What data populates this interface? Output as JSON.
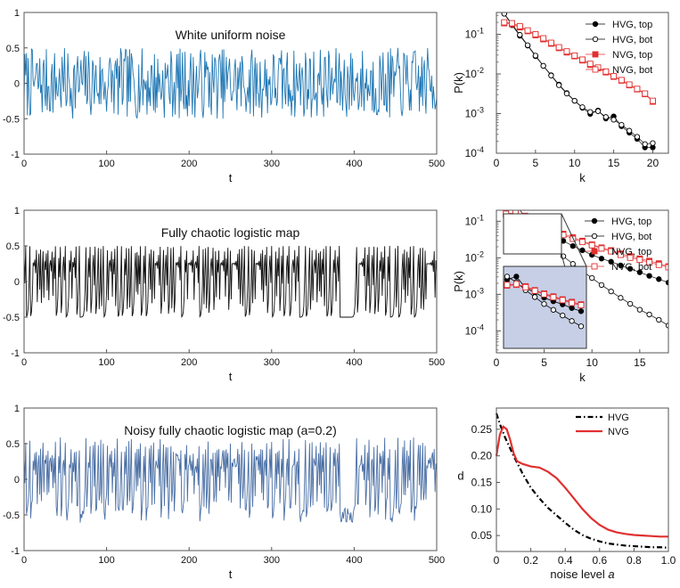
{
  "chart_data": [
    {
      "id": "ts1",
      "type": "line",
      "title": "White uniform noise",
      "xlabel": "t",
      "ylabel": "",
      "xlim": [
        0,
        500
      ],
      "ylim": [
        -1,
        1
      ],
      "xticks": [
        "0",
        "100",
        "200",
        "300",
        "400",
        "500"
      ],
      "yticks": [
        "-1",
        "-0.5",
        "0",
        "0.5",
        "1"
      ],
      "series": [
        {
          "name": "white uniform noise",
          "color": "#1f77b4",
          "generator": "uniform",
          "n": 500,
          "amplitude": 0.5
        }
      ]
    },
    {
      "id": "ts2",
      "type": "line",
      "title": "Fully chaotic logistic map",
      "xlabel": "t",
      "ylabel": "",
      "xlim": [
        0,
        500
      ],
      "ylim": [
        -1,
        1
      ],
      "xticks": [
        "0",
        "100",
        "200",
        "300",
        "400",
        "500"
      ],
      "yticks": [
        "-1",
        "-0.5",
        "0",
        "0.5",
        "1"
      ],
      "series": [
        {
          "name": "logistic map",
          "color": "#111111",
          "generator": "logistic",
          "n": 500,
          "noise": 0
        }
      ]
    },
    {
      "id": "ts3",
      "type": "line",
      "title": "Noisy fully chaotic logistic map (a=0.2)",
      "xlabel": "t",
      "ylabel": "",
      "xlim": [
        0,
        500
      ],
      "ylim": [
        -1,
        1
      ],
      "xticks": [
        "0",
        "100",
        "200",
        "300",
        "400",
        "500"
      ],
      "yticks": [
        "-1",
        "-0.5",
        "0",
        "0.5",
        "1"
      ],
      "series": [
        {
          "name": "noisy logistic map",
          "color": "#4a6fa5",
          "generator": "logistic",
          "n": 500,
          "noise": 0.2
        }
      ]
    },
    {
      "id": "deg1",
      "type": "scatter",
      "xlabel": "k",
      "ylabel": "P(k)",
      "xlim": [
        0,
        22
      ],
      "ylim_log": [
        -4,
        -0.45
      ],
      "xticks": [
        "0",
        "5",
        "10",
        "15",
        "20"
      ],
      "ytick_exponents": [
        -4,
        -3,
        -2,
        -1
      ],
      "legend": "top-right",
      "series": [
        {
          "name": "HVG, top",
          "color": "#000000",
          "marker": "filled-circle",
          "x": [
            1,
            2,
            3,
            4,
            5,
            6,
            7,
            8,
            9,
            10,
            11,
            12,
            13,
            14,
            15,
            16,
            17,
            18,
            19,
            20
          ],
          "y": [
            0.33,
            0.17,
            0.092,
            0.052,
            0.028,
            0.016,
            0.0093,
            0.0054,
            0.0033,
            0.0021,
            0.0014,
            0.00098,
            0.0012,
            0.00075,
            0.00085,
            0.00048,
            0.00033,
            0.00023,
            0.00014,
            0.00014
          ]
        },
        {
          "name": "HVG, bot",
          "color": "#000000",
          "marker": "open-circle",
          "x": [
            1,
            2,
            3,
            4,
            5,
            6,
            7,
            8,
            9,
            10,
            11,
            12,
            13,
            14,
            15,
            16,
            17,
            18,
            19,
            20
          ],
          "y": [
            0.33,
            0.18,
            0.097,
            0.053,
            0.029,
            0.016,
            0.0091,
            0.0052,
            0.0032,
            0.0021,
            0.00145,
            0.0011,
            0.00115,
            0.00082,
            0.0007,
            0.00052,
            0.00037,
            0.00026,
            0.00017,
            0.00018
          ]
        },
        {
          "name": "NVG, top",
          "color": "#e03030",
          "marker": "filled-square",
          "x": [
            1,
            2,
            3,
            4,
            5,
            6,
            7,
            8,
            9,
            10,
            11,
            12,
            13,
            14,
            15,
            16,
            17,
            18,
            19,
            20
          ],
          "y": [
            0.19,
            0.18,
            0.15,
            0.12,
            0.095,
            0.075,
            0.058,
            0.045,
            0.035,
            0.028,
            0.022,
            0.017,
            0.014,
            0.011,
            0.0085,
            0.0068,
            0.0052,
            0.0041,
            0.0031,
            0.002
          ]
        },
        {
          "name": "NVG, bot",
          "color": "#e03030",
          "marker": "open-square",
          "x": [
            1,
            2,
            3,
            4,
            5,
            6,
            7,
            8,
            9,
            10,
            11,
            12,
            13,
            14,
            15,
            16,
            17,
            18,
            19,
            20
          ],
          "y": [
            0.2,
            0.19,
            0.16,
            0.125,
            0.1,
            0.079,
            0.061,
            0.047,
            0.037,
            0.029,
            0.023,
            0.018,
            0.0145,
            0.0115,
            0.0088,
            0.007,
            0.0054,
            0.0042,
            0.0032,
            0.0021
          ]
        }
      ]
    },
    {
      "id": "deg2",
      "type": "scatter",
      "xlabel": "k",
      "ylabel": "P(k)",
      "xlim": [
        0,
        18
      ],
      "ylim_log": [
        -4.6,
        -0.7
      ],
      "xticks": [
        "0",
        "5",
        "10",
        "15"
      ],
      "ytick_exponents": [
        -4,
        -3,
        -2,
        -1
      ],
      "legend": "top-right",
      "has_inset": true,
      "series": [
        {
          "name": "HVG, top",
          "color": "#000000",
          "marker": "filled-circle",
          "x": [
            1,
            2,
            3,
            4,
            5,
            6,
            7,
            8,
            9,
            10,
            11,
            12,
            13,
            14,
            15,
            16,
            17,
            18
          ],
          "y": [
            0.25,
            0.33,
            0.12,
            0.082,
            0.052,
            0.038,
            0.029,
            0.021,
            0.016,
            0.012,
            0.0095,
            0.0078,
            0.0062,
            0.005,
            0.004,
            0.0032,
            0.0026,
            0.0021
          ]
        },
        {
          "name": "HVG, bot",
          "color": "#000000",
          "marker": "open-circle",
          "x": [
            1,
            2,
            3,
            4,
            5,
            6,
            7,
            8,
            9,
            10,
            11,
            12,
            13,
            14,
            15,
            16,
            17,
            18
          ],
          "y": [
            0.33,
            0.2,
            0.1,
            0.055,
            0.03,
            0.018,
            0.011,
            0.0068,
            0.0043,
            0.0028,
            0.0018,
            0.0012,
            0.0008,
            0.00055,
            0.00038,
            0.00028,
            0.0002,
            0.00014
          ]
        },
        {
          "name": "NVG, top",
          "color": "#e03030",
          "marker": "filled-square",
          "x": [
            1,
            2,
            3,
            4,
            5,
            6,
            7,
            8,
            9,
            10,
            11,
            12,
            13,
            14,
            15,
            16,
            17,
            18
          ],
          "y": [
            0.15,
            0.16,
            0.14,
            0.1,
            0.075,
            0.058,
            0.045,
            0.036,
            0.029,
            0.023,
            0.019,
            0.016,
            0.013,
            0.011,
            0.0095,
            0.0082,
            0.007,
            0.0058
          ]
        },
        {
          "name": "NVG, bot",
          "color": "#e03030",
          "marker": "open-square",
          "x": [
            1,
            2,
            3,
            4,
            5,
            6,
            7,
            8,
            9,
            10,
            11,
            12,
            13,
            14,
            15,
            16,
            17,
            18
          ],
          "y": [
            0.16,
            0.17,
            0.13,
            0.095,
            0.07,
            0.054,
            0.042,
            0.033,
            0.027,
            0.022,
            0.018,
            0.015,
            0.012,
            0.01,
            0.0088,
            0.0075,
            0.0064,
            0.0055
          ]
        }
      ]
    },
    {
      "id": "dist",
      "type": "line",
      "xlabel": "noise level a",
      "xlabel_main": "noise level ",
      "xlabel_var": "a",
      "ylabel": "d",
      "xlim": [
        0,
        1
      ],
      "ylim": [
        0.02,
        0.29
      ],
      "xticks": [
        "0",
        "0.2",
        "0.4",
        "0.6",
        "0.8",
        "1.0"
      ],
      "yticks": [
        "0.05",
        "0.10",
        "0.15",
        "0.20",
        "0.25"
      ],
      "legend": "top-right",
      "series": [
        {
          "name": "HVG",
          "color": "#000000",
          "style": "dashdot",
          "x": [
            0,
            0.02,
            0.05,
            0.1,
            0.15,
            0.2,
            0.25,
            0.3,
            0.35,
            0.4,
            0.45,
            0.5,
            0.55,
            0.6,
            0.65,
            0.7,
            0.75,
            0.8,
            0.85,
            0.9,
            0.95,
            1.0
          ],
          "y": [
            0.28,
            0.26,
            0.235,
            0.2,
            0.168,
            0.14,
            0.12,
            0.102,
            0.088,
            0.074,
            0.061,
            0.051,
            0.044,
            0.039,
            0.035,
            0.033,
            0.031,
            0.03,
            0.029,
            0.028,
            0.028,
            0.027
          ]
        },
        {
          "name": "NVG",
          "color": "#e03030",
          "style": "solid",
          "x": [
            0,
            0.02,
            0.04,
            0.06,
            0.08,
            0.1,
            0.12,
            0.15,
            0.2,
            0.25,
            0.3,
            0.35,
            0.4,
            0.45,
            0.5,
            0.55,
            0.6,
            0.65,
            0.7,
            0.75,
            0.8,
            0.85,
            0.9,
            0.95,
            1.0
          ],
          "y": [
            0.2,
            0.24,
            0.255,
            0.25,
            0.23,
            0.205,
            0.19,
            0.185,
            0.18,
            0.178,
            0.17,
            0.158,
            0.14,
            0.12,
            0.1,
            0.083,
            0.07,
            0.061,
            0.056,
            0.053,
            0.051,
            0.05,
            0.049,
            0.048,
            0.048
          ]
        }
      ]
    }
  ]
}
